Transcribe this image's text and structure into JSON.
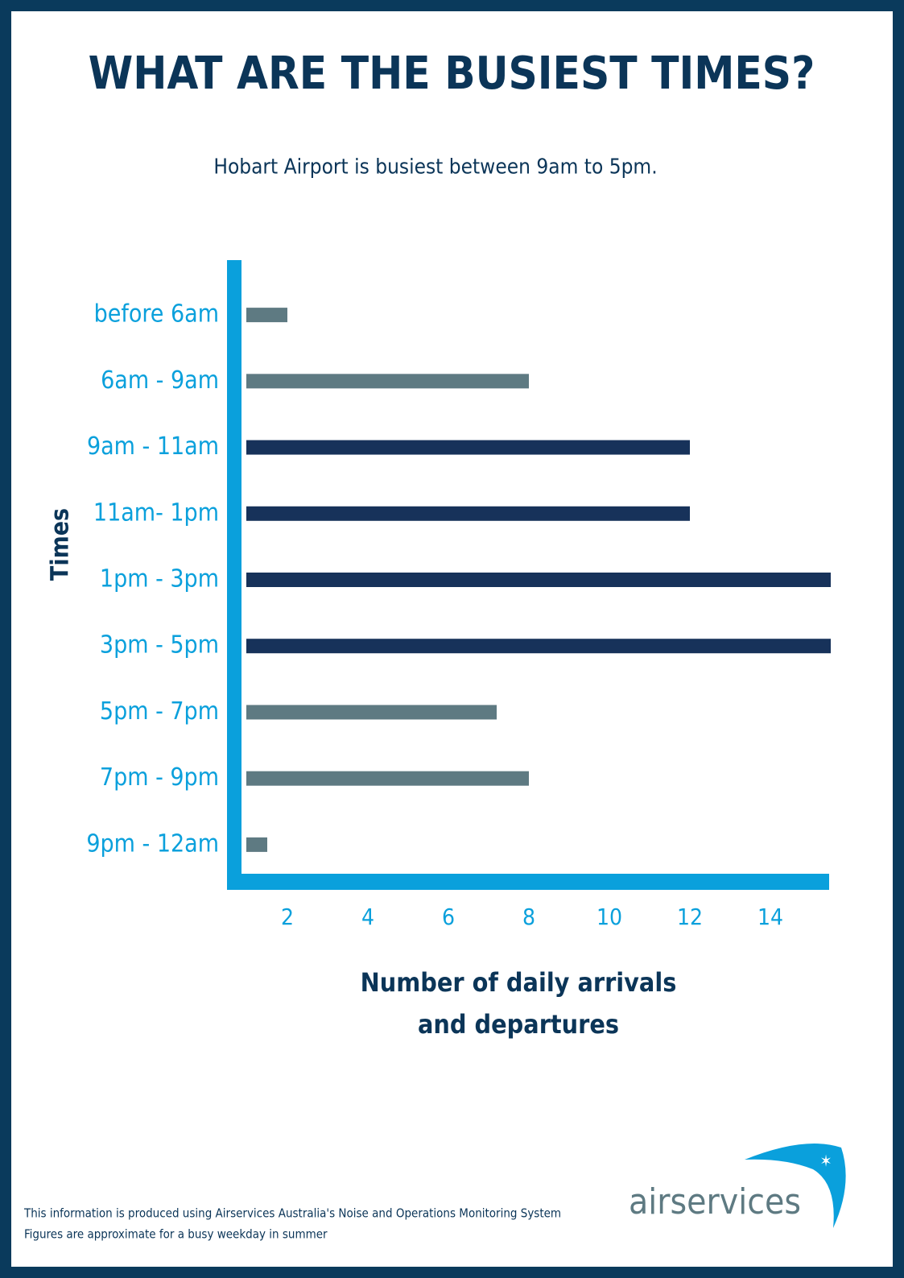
{
  "chart_data": {
    "type": "bar",
    "orientation": "horizontal",
    "title": "WHAT ARE THE BUSIEST TIMES?",
    "subtitle": "Hobart Airport is busiest between 9am to 5pm.",
    "y_label": "Times",
    "x_label": "Number of daily arrivals and departures",
    "categories": [
      "before 6am",
      "6am - 9am",
      "9am - 11am",
      "11am- 1pm",
      "1pm - 3pm",
      "3pm - 5pm",
      "5pm - 7pm",
      "7pm - 9pm",
      "9pm - 12am"
    ],
    "values": [
      2,
      8,
      12,
      12,
      15.5,
      15.5,
      7.2,
      8,
      1.5
    ],
    "colors": [
      "#5e7a82",
      "#5e7a82",
      "#17325a",
      "#17325a",
      "#17325a",
      "#17325a",
      "#5e7a82",
      "#5e7a82",
      "#5e7a82"
    ],
    "xlim": [
      0.7,
      15.5
    ],
    "xticks": [
      2,
      4,
      6,
      8,
      10,
      12,
      14
    ],
    "grid": false
  },
  "footer": {
    "notes": [
      "This information is produced using Airservices Australia's Noise and Operations Monitoring System",
      "Figures are approximate for a busy weekday in summer"
    ],
    "logo": "airservices"
  }
}
